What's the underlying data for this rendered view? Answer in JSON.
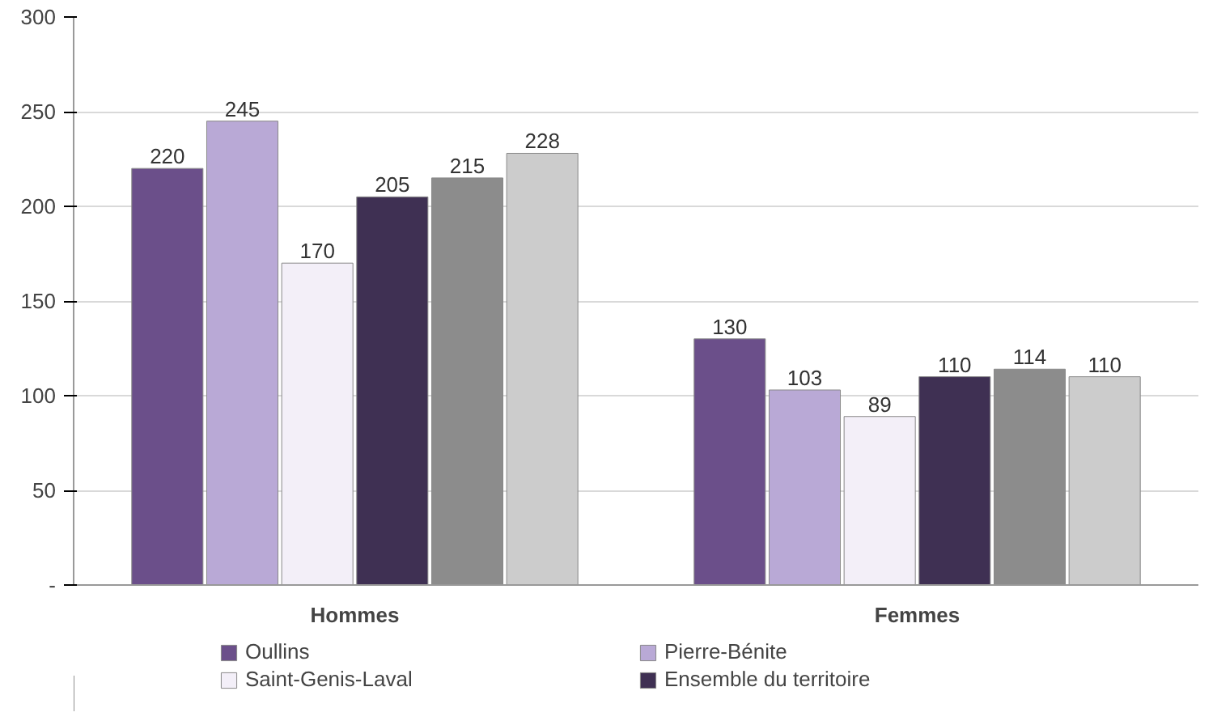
{
  "chart_data": {
    "type": "bar",
    "categories": [
      "Hommes",
      "Femmes"
    ],
    "series": [
      {
        "name": "Oullins",
        "color": "#6b4f8a",
        "values": [
          220,
          130
        ]
      },
      {
        "name": "Pierre-Bénite",
        "color": "#b9a9d6",
        "values": [
          245,
          103
        ]
      },
      {
        "name": "Saint-Genis-Laval",
        "color": "#f3eff8",
        "values": [
          170,
          89
        ]
      },
      {
        "name": "Ensemble du territoire",
        "color": "#3f3053",
        "values": [
          205,
          110
        ]
      },
      {
        "color": "#8c8c8c",
        "values": [
          215,
          114
        ]
      },
      {
        "color": "#cccccc",
        "values": [
          228,
          110
        ]
      }
    ],
    "ylim": [
      0,
      300
    ],
    "yticks": [
      {
        "value": 0,
        "label": "-"
      },
      50,
      100,
      150,
      200,
      250,
      300
    ],
    "grid": "y",
    "legend": "bottom",
    "data_labels": true
  }
}
